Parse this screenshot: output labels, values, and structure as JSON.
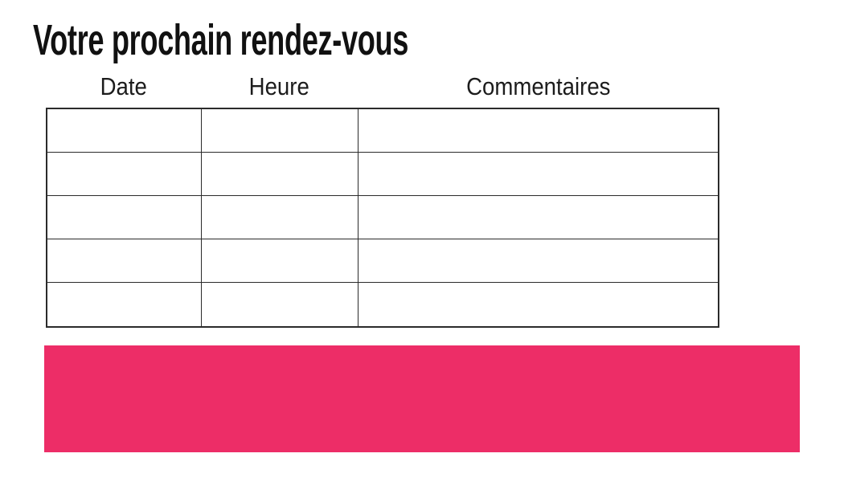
{
  "page": {
    "title": "Votre prochain rendez-vous"
  },
  "table": {
    "columns": [
      {
        "label": "Date"
      },
      {
        "label": "Heure"
      },
      {
        "label": "Commentaires"
      }
    ],
    "rows": [
      [
        "",
        "",
        ""
      ],
      [
        "",
        "",
        ""
      ],
      [
        "",
        "",
        ""
      ],
      [
        "",
        "",
        ""
      ],
      [
        "",
        "",
        ""
      ]
    ]
  },
  "banner": {
    "color": "#ed2d67"
  },
  "colors": {
    "accent_pink": "#ed2d67",
    "table_border": "#2b2b2b",
    "text": "#111111"
  }
}
